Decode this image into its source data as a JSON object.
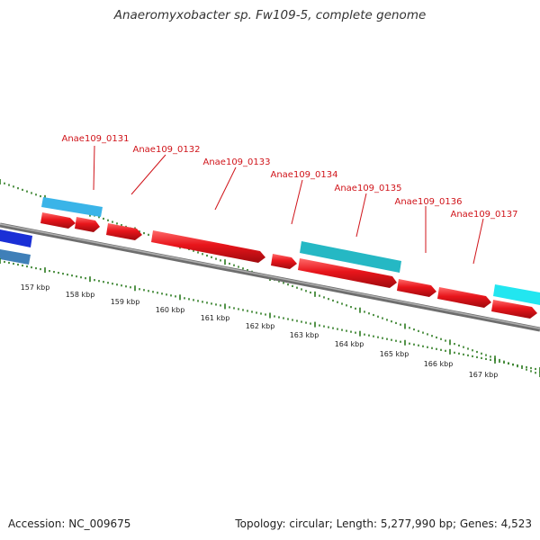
{
  "title": "Anaeromyxobacter sp. Fw109-5, complete genome",
  "footer": {
    "accession": "Accession: NC_009675",
    "summary": "Topology: circular; Length: 5,277,990 bp; Genes: 4,523"
  },
  "colors": {
    "forward_cds": "#e8151b",
    "backbone": "#8a8a8a",
    "ticks": "#2a7a1e",
    "label": "#d0141a",
    "leader": "#d0141a"
  },
  "gene_labels": [
    "Anae109_0131",
    "Anae109_0132",
    "Anae109_0133",
    "Anae109_0134",
    "Anae109_0135",
    "Anae109_0136",
    "Anae109_0137"
  ],
  "kbp_ticks": [
    "157 kbp",
    "158 kbp",
    "159 kbp",
    "160 kbp",
    "161 kbp",
    "162 kbp",
    "163 kbp",
    "164 kbp",
    "165 kbp",
    "166 kbp",
    "167 kbp"
  ],
  "features": [
    {
      "kind": "fwd",
      "color": "#e8151b"
    },
    {
      "kind": "fwd",
      "color": "#e8151b"
    },
    {
      "kind": "fwd",
      "color": "#e8151b"
    },
    {
      "kind": "fwd",
      "color": "#e8151b"
    },
    {
      "kind": "fwd",
      "color": "#e8151b"
    },
    {
      "kind": "fwd",
      "color": "#e8151b"
    },
    {
      "kind": "fwd",
      "color": "#e8151b"
    },
    {
      "kind": "fwd",
      "color": "#e8151b"
    },
    {
      "kind": "fwd",
      "color": "#e8151b"
    },
    {
      "kind": "band",
      "color": "#3ab4e8"
    },
    {
      "kind": "band",
      "color": "#25b8c4"
    },
    {
      "kind": "band",
      "color": "#22e6f0"
    },
    {
      "kind": "band",
      "color": "#1a2fd6"
    },
    {
      "kind": "band",
      "color": "#3f7fb8"
    }
  ]
}
